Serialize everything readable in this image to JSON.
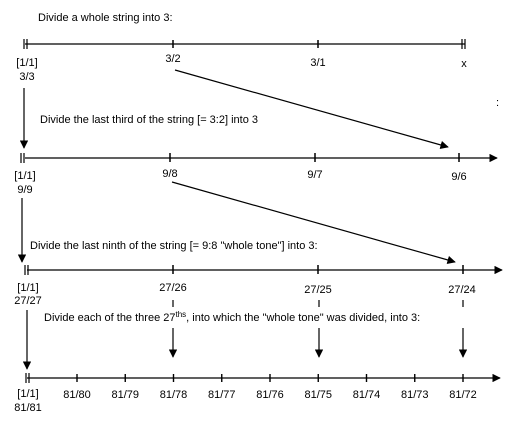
{
  "captions": {
    "c1": "Divide a whole string into 3:",
    "c2": "Divide the last third of the string [= 3:2] into 3",
    "c3": "Divide the last ninth of the string [= 9:8 \"whole tone\"] into 3:",
    "c4_pre": "Divide each of the three 27",
    "c4_sup": "ths",
    "c4_post": ", into which the \"whole tone\" was divided, into 3:"
  },
  "stray_mark": ":",
  "line1": {
    "start_top": "[1/1]",
    "start_bottom": "3/3",
    "p1": "3/2",
    "p2": "3/1",
    "end": "x"
  },
  "line2": {
    "start_top": "[1/1]",
    "start_bottom": "9/9",
    "p1": "9/8",
    "p2": "9/7",
    "end": "9/6"
  },
  "line3": {
    "start_top": "[1/1]",
    "start_bottom": "27/27",
    "p1": "27/26",
    "p2": "27/25",
    "end": "27/24"
  },
  "line4": {
    "start_top": "[1/1]",
    "start_bottom": "81/81",
    "ticks": [
      "81/80",
      "81/79",
      "81/78",
      "81/77",
      "81/76",
      "81/75",
      "81/74",
      "81/73",
      "81/72"
    ]
  }
}
